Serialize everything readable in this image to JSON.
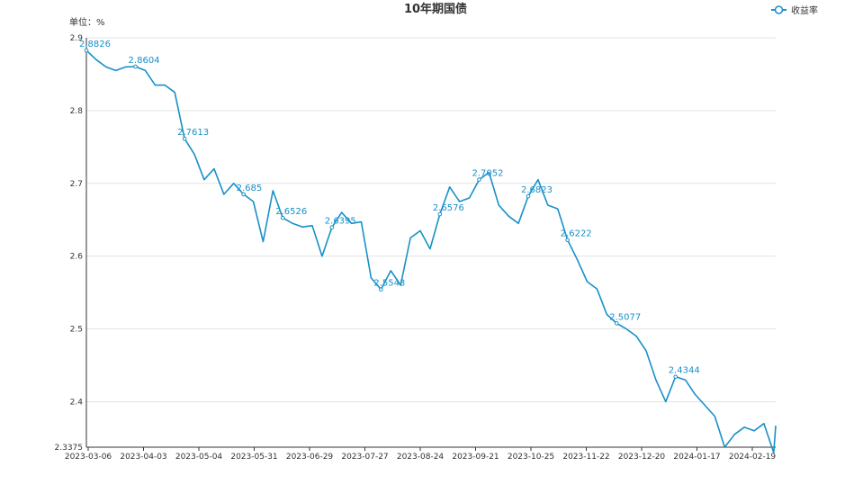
{
  "chart_data": {
    "type": "line",
    "title": "10年期国债",
    "unit_label": "单位：%",
    "legend": {
      "label": "收益率",
      "position": "top-right"
    },
    "line_color": "#1890c8",
    "grid_color": "#e3e3e3",
    "axis_color": "#333333",
    "ylim": [
      2.3375,
      2.9
    ],
    "y_ticks": [
      "2.9",
      "2.8",
      "2.7",
      "2.6",
      "2.5",
      "2.4",
      "2.3375"
    ],
    "x_ticks": [
      "2023-03-06",
      "2023-04-03",
      "2023-05-04",
      "2023-05-31",
      "2023-06-29",
      "2023-07-27",
      "2023-08-24",
      "2023-09-21",
      "2023-10-25",
      "2023-11-22",
      "2023-12-20",
      "2024-01-17",
      "2024-02-19"
    ],
    "series": [
      {
        "name": "收益率",
        "x": [
          0,
          5,
          10,
          15,
          20,
          25,
          30,
          35,
          40,
          45,
          50,
          55,
          60,
          65,
          70,
          75,
          80,
          85,
          90,
          95,
          100,
          105,
          110,
          115,
          120,
          125,
          130,
          135,
          140,
          145,
          150,
          155,
          160,
          165,
          170,
          175,
          180,
          185,
          190,
          195,
          200,
          205,
          210,
          215,
          220,
          225,
          230,
          235,
          240,
          245,
          250,
          255,
          260,
          265,
          270,
          275,
          280,
          285,
          290,
          295,
          300,
          305,
          310,
          315,
          320,
          325,
          330,
          335,
          340,
          345,
          350,
          351
        ],
        "values": [
          2.8826,
          2.87,
          2.86,
          2.855,
          2.86,
          2.8604,
          2.855,
          2.835,
          2.835,
          2.825,
          2.7613,
          2.74,
          2.705,
          2.72,
          2.685,
          2.7,
          2.685,
          2.675,
          2.62,
          2.69,
          2.6526,
          2.645,
          2.64,
          2.642,
          2.6,
          2.6395,
          2.66,
          2.645,
          2.647,
          2.57,
          2.5543,
          2.58,
          2.56,
          2.625,
          2.635,
          2.61,
          2.6576,
          2.695,
          2.675,
          2.68,
          2.7052,
          2.715,
          2.67,
          2.655,
          2.645,
          2.6823,
          2.705,
          2.67,
          2.665,
          2.6222,
          2.595,
          2.565,
          2.555,
          2.52,
          2.5077,
          2.5,
          2.49,
          2.47,
          2.43,
          2.4,
          2.4344,
          2.43,
          2.41,
          2.395,
          2.38,
          2.3375,
          2.355,
          2.365,
          2.36,
          2.37,
          2.33,
          2.367
        ]
      }
    ],
    "point_labels": [
      {
        "text": "2.8826",
        "x": 0,
        "value": 2.8826
      },
      {
        "text": "2.8604",
        "x": 25,
        "value": 2.8604
      },
      {
        "text": "2.7613",
        "x": 50,
        "value": 2.7613
      },
      {
        "text": "2.685",
        "x": 80,
        "value": 2.685
      },
      {
        "text": "2.6526",
        "x": 100,
        "value": 2.6526
      },
      {
        "text": "2.6395",
        "x": 125,
        "value": 2.6395
      },
      {
        "text": "2.5543",
        "x": 150,
        "value": 2.5543
      },
      {
        "text": "2.6576",
        "x": 180,
        "value": 2.6576
      },
      {
        "text": "2.7052",
        "x": 200,
        "value": 2.7052
      },
      {
        "text": "2.6823",
        "x": 225,
        "value": 2.6823
      },
      {
        "text": "2.6222",
        "x": 245,
        "value": 2.6222
      },
      {
        "text": "2.5077",
        "x": 270,
        "value": 2.5077
      },
      {
        "text": "2.4344",
        "x": 300,
        "value": 2.4344
      }
    ]
  }
}
